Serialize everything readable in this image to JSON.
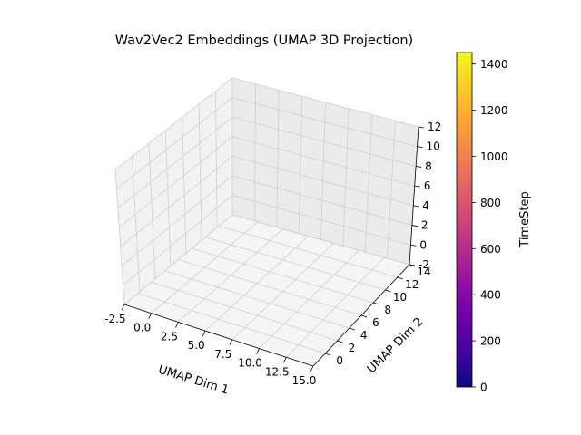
{
  "chart_data": {
    "type": "scatter",
    "title": "Wav2Vec2 Embeddings (UMAP 3D Projection)",
    "xlabel": "UMAP Dim 1",
    "ylabel": "UMAP Dim 2",
    "zlabel": "",
    "xlim": [
      -2.5,
      15.0
    ],
    "ylim": [
      -2,
      14
    ],
    "zlim": [
      -2,
      12
    ],
    "x_ticks": [
      "-2.5",
      "0.0",
      "2.5",
      "5.0",
      "7.5",
      "10.0",
      "12.5",
      "15.0"
    ],
    "y_ticks": [
      "0",
      "2",
      "4",
      "6",
      "8",
      "10",
      "12",
      "14"
    ],
    "z_ticks": [
      "-2",
      "0",
      "2",
      "4",
      "6",
      "8",
      "10",
      "12"
    ],
    "grid": true,
    "points": [],
    "colorbar": {
      "label": "TimeStep",
      "min": 0,
      "max": 1450,
      "ticks": [
        "0",
        "200",
        "400",
        "600",
        "800",
        "1000",
        "1200",
        "1400"
      ],
      "colormap": "plasma",
      "colors": [
        "#0d0887",
        "#41049d",
        "#6a00a8",
        "#8f0da4",
        "#b12a90",
        "#cc4778",
        "#e16462",
        "#f2844b",
        "#fca636",
        "#fcce25",
        "#f0f921"
      ]
    }
  }
}
